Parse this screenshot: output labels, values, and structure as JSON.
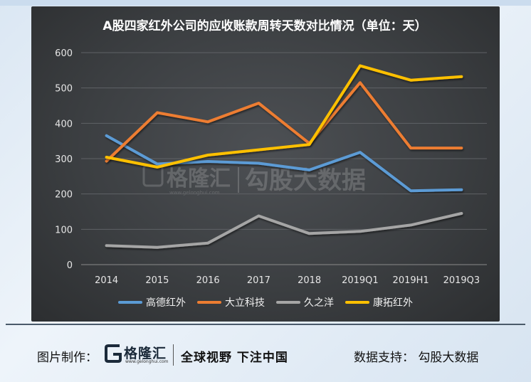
{
  "chart_data": {
    "type": "line",
    "title": "A股四家红外公司的应收账款周转天数对比情况（单位：天）",
    "categories": [
      "2014",
      "2015",
      "2016",
      "2017",
      "2018",
      "2019Q1",
      "2019H1",
      "2019Q3"
    ],
    "ylim": [
      0,
      600
    ],
    "yticks": [
      0,
      100,
      200,
      300,
      400,
      500,
      600
    ],
    "grid": true,
    "legend_position": "bottom",
    "series": [
      {
        "name": "高德红外",
        "color": "#5b9bd5",
        "values": [
          365,
          285,
          292,
          287,
          268,
          318,
          209,
          212
        ]
      },
      {
        "name": "大立科技",
        "color": "#ed7d31",
        "values": [
          293,
          430,
          404,
          457,
          343,
          515,
          330,
          330
        ]
      },
      {
        "name": "久之洋",
        "color": "#a5a5a5",
        "values": [
          54,
          49,
          61,
          138,
          88,
          94,
          112,
          145
        ]
      },
      {
        "name": "康拓红外",
        "color": "#ffc000",
        "values": [
          304,
          276,
          310,
          325,
          340,
          563,
          522,
          532
        ]
      }
    ]
  },
  "watermark": {
    "logo_text": "格隆汇",
    "logo_url": "www.gelonghui.com",
    "text": "勾股大数据"
  },
  "footer": {
    "credit_label": "图片制作：",
    "logo_text": "格隆汇",
    "logo_url": "www.gelonghui.com",
    "slogan": "全球视野 下注中国",
    "data_support": "数据支持：   勾股大数据"
  }
}
